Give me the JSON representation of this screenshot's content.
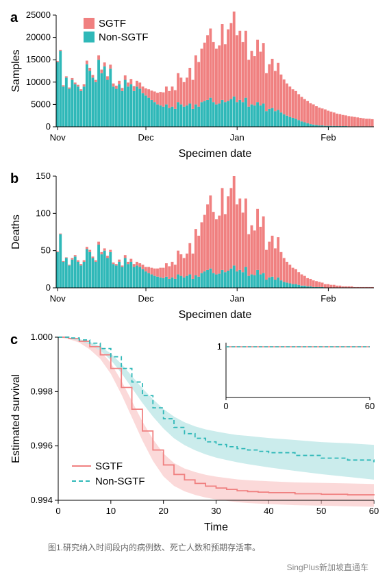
{
  "colors": {
    "sgtf": "#f08080",
    "nonsgtf": "#2fb8b8",
    "sgtf_fill_light": "#f8c0c0",
    "nonsgtf_fill_light": "#a8e0e0",
    "axis": "#000000",
    "grid": "#e6e6e6",
    "bg": "#ffffff"
  },
  "typography": {
    "axis_label_fontsize": 16,
    "tick_fontsize": 13,
    "legend_fontsize": 15,
    "panel_label_fontsize": 20,
    "caption_fontsize": 12
  },
  "panel_a": {
    "label": "a",
    "type": "stacked_bar",
    "x_axis": {
      "label": "Specimen date",
      "ticks": [
        "Nov",
        "Dec",
        "Jan",
        "Feb"
      ]
    },
    "y_axis": {
      "label": "Samples",
      "min": 0,
      "max": 25000,
      "tick_step": 5000,
      "ticks": [
        0,
        5000,
        10000,
        15000,
        20000,
        25000
      ]
    },
    "legend": {
      "items": [
        {
          "label": "SGTF",
          "color": "#f08080"
        },
        {
          "label": "Non-SGTF",
          "color": "#2fb8b8"
        }
      ],
      "position": "top-inside-left"
    },
    "n_bars": 108,
    "series_nonsgtf": [
      14500,
      17000,
      9000,
      11000,
      8500,
      10500,
      9500,
      9000,
      8000,
      9000,
      14000,
      12500,
      11000,
      10000,
      15000,
      12000,
      13500,
      10500,
      13000,
      9000,
      8500,
      9500,
      8000,
      10500,
      9000,
      9500,
      8000,
      9000,
      8500,
      7500,
      7000,
      6500,
      6000,
      5500,
      5000,
      4800,
      4500,
      5000,
      4200,
      4500,
      4000,
      5500,
      5000,
      4500,
      4800,
      5200,
      4000,
      5000,
      4500,
      5500,
      5800,
      6000,
      6500,
      5500,
      5000,
      5200,
      6000,
      5500,
      5800,
      6200,
      6800,
      5500,
      6000,
      5500,
      6500,
      4500,
      5000,
      4800,
      5500,
      4800,
      5200,
      3500,
      4000,
      4200,
      3500,
      3800,
      3200,
      2800,
      2500,
      2200,
      2000,
      1800,
      1500,
      1200,
      1000,
      800,
      600,
      500,
      400,
      300,
      300,
      200,
      200,
      200,
      200,
      150,
      150,
      150,
      150,
      100,
      100,
      100,
      100,
      100,
      100,
      100,
      100,
      100
    ],
    "series_sgtf": [
      200,
      200,
      300,
      300,
      300,
      400,
      400,
      400,
      400,
      500,
      800,
      700,
      600,
      500,
      1000,
      800,
      900,
      800,
      900,
      700,
      700,
      800,
      700,
      1000,
      900,
      1200,
      1100,
      1300,
      1400,
      1500,
      1600,
      1900,
      2100,
      2400,
      2600,
      3000,
      3200,
      4000,
      3800,
      4500,
      4200,
      6500,
      6000,
      5500,
      6200,
      8000,
      6500,
      11000,
      10000,
      12000,
      13000,
      14500,
      15500,
      13500,
      12500,
      13000,
      17000,
      13000,
      16000,
      17000,
      19000,
      15000,
      15500,
      13500,
      15000,
      10500,
      12000,
      11000,
      14000,
      12000,
      13500,
      8500,
      10000,
      11000,
      9000,
      10500,
      8500,
      7800,
      7200,
      6800,
      6400,
      6200,
      5800,
      5500,
      5200,
      5000,
      4700,
      4500,
      4200,
      4000,
      3800,
      3700,
      3400,
      3200,
      3000,
      2800,
      2700,
      2500,
      2400,
      2300,
      2200,
      2100,
      2000,
      1900,
      1800,
      1700,
      1700,
      1600
    ]
  },
  "panel_b": {
    "label": "b",
    "type": "stacked_bar",
    "x_axis": {
      "label": "Specimen date",
      "ticks": [
        "Nov",
        "Dec",
        "Jan",
        "Feb"
      ]
    },
    "y_axis": {
      "label": "Deaths",
      "min": 0,
      "max": 150,
      "tick_step": 50,
      "ticks": [
        0,
        50,
        100,
        150
      ]
    },
    "n_bars": 108,
    "series_nonsgtf": [
      48,
      72,
      35,
      40,
      30,
      38,
      42,
      35,
      30,
      35,
      52,
      48,
      40,
      35,
      58,
      45,
      50,
      40,
      48,
      32,
      30,
      35,
      28,
      40,
      32,
      35,
      28,
      30,
      28,
      25,
      22,
      20,
      18,
      16,
      15,
      14,
      13,
      15,
      12,
      14,
      12,
      18,
      16,
      14,
      16,
      18,
      12,
      17,
      15,
      20,
      22,
      24,
      26,
      20,
      18,
      19,
      24,
      21,
      23,
      26,
      30,
      22,
      24,
      21,
      28,
      16,
      18,
      17,
      24,
      18,
      20,
      11,
      14,
      15,
      11,
      14,
      10,
      8,
      7,
      6,
      5,
      5,
      4,
      3,
      3,
      2,
      2,
      1,
      1,
      1,
      1,
      0,
      0,
      0,
      0,
      0,
      0,
      0,
      0,
      0,
      0,
      0,
      0,
      0,
      0,
      0,
      0,
      0
    ],
    "series_sgtf": [
      1,
      1,
      1,
      1,
      1,
      2,
      2,
      2,
      2,
      2,
      3,
      3,
      2,
      2,
      4,
      3,
      3,
      3,
      3,
      2,
      2,
      3,
      2,
      4,
      3,
      4,
      4,
      5,
      5,
      6,
      6,
      8,
      9,
      10,
      11,
      13,
      14,
      18,
      17,
      21,
      19,
      32,
      29,
      26,
      30,
      42,
      34,
      62,
      55,
      68,
      76,
      88,
      98,
      82,
      74,
      78,
      110,
      78,
      100,
      108,
      120,
      90,
      96,
      80,
      92,
      56,
      66,
      60,
      82,
      64,
      76,
      40,
      48,
      55,
      42,
      54,
      38,
      32,
      28,
      25,
      22,
      20,
      17,
      15,
      13,
      11,
      10,
      9,
      8,
      7,
      6,
      5,
      5,
      4,
      4,
      3,
      3,
      2,
      2,
      2,
      2,
      1,
      1,
      1,
      1,
      1,
      1,
      1
    ]
  },
  "panel_c": {
    "label": "c",
    "type": "survival_curve",
    "x_axis": {
      "label": "Time",
      "min": 0,
      "max": 60,
      "tick_step": 10,
      "ticks": [
        0,
        10,
        20,
        30,
        40,
        50,
        60
      ]
    },
    "y_axis": {
      "label": "Estimated survival",
      "min": 0.994,
      "max": 1.0,
      "tick_step": 0.002,
      "ticks": [
        0.994,
        0.996,
        0.998,
        1.0
      ]
    },
    "legend": {
      "items": [
        {
          "label": "SGTF",
          "color": "#f08080",
          "dash": "solid"
        },
        {
          "label": "Non-SGTF",
          "color": "#2fb8b8",
          "dash": "dashed"
        }
      ],
      "position": "bottom-inside-left"
    },
    "inset": {
      "x_axis": {
        "min": 0,
        "max": 60,
        "ticks": [
          0,
          60
        ]
      },
      "y_axis": {
        "ticks": [
          1
        ]
      },
      "position": "top-right"
    },
    "curve_sgtf": {
      "x": [
        0,
        2,
        4,
        6,
        8,
        10,
        12,
        14,
        16,
        18,
        20,
        22,
        24,
        26,
        28,
        30,
        32,
        34,
        36,
        38,
        40,
        45,
        50,
        55,
        60
      ],
      "y": [
        1.0,
        0.99995,
        0.99985,
        0.99965,
        0.99935,
        0.99885,
        0.99815,
        0.99735,
        0.99655,
        0.99585,
        0.9953,
        0.99495,
        0.99475,
        0.99462,
        0.99452,
        0.99445,
        0.9944,
        0.99435,
        0.99432,
        0.9943,
        0.99428,
        0.99424,
        0.99422,
        0.9942,
        0.99418
      ],
      "ci_lo": [
        1.0,
        0.99993,
        0.9998,
        0.99955,
        0.9992,
        0.99865,
        0.9979,
        0.99705,
        0.9962,
        0.99545,
        0.99488,
        0.99453,
        0.99433,
        0.9942,
        0.9941,
        0.99403,
        0.99398,
        0.99393,
        0.9939,
        0.99388,
        0.99386,
        0.99382,
        0.9938,
        0.99378,
        0.99376
      ],
      "ci_hi": [
        1.0,
        0.99997,
        0.9999,
        0.99975,
        0.9995,
        0.99905,
        0.9984,
        0.99765,
        0.9969,
        0.99625,
        0.99572,
        0.99537,
        0.99517,
        0.99504,
        0.99494,
        0.99487,
        0.99482,
        0.99477,
        0.99474,
        0.99472,
        0.9947,
        0.99466,
        0.99464,
        0.99462,
        0.9946
      ]
    },
    "curve_nonsgtf": {
      "x": [
        0,
        2,
        4,
        6,
        8,
        10,
        12,
        14,
        16,
        18,
        20,
        22,
        24,
        26,
        28,
        30,
        32,
        34,
        36,
        38,
        40,
        45,
        50,
        55,
        60
      ],
      "y": [
        1.0,
        0.99997,
        0.9999,
        0.99978,
        0.99958,
        0.99928,
        0.99885,
        0.99835,
        0.99785,
        0.9974,
        0.997,
        0.99668,
        0.99645,
        0.99628,
        0.99615,
        0.99605,
        0.99597,
        0.9959,
        0.99585,
        0.9958,
        0.99575,
        0.99565,
        0.99555,
        0.99548,
        0.9954
      ],
      "ci_lo": [
        1.0,
        0.99996,
        0.99987,
        0.99973,
        0.9995,
        0.99916,
        0.99868,
        0.99813,
        0.99758,
        0.99708,
        0.99664,
        0.99628,
        0.99603,
        0.99584,
        0.99569,
        0.99557,
        0.99548,
        0.9954,
        0.99533,
        0.99527,
        0.99521,
        0.99508,
        0.99496,
        0.99486,
        0.99476
      ],
      "ci_hi": [
        1.0,
        0.99998,
        0.99993,
        0.99983,
        0.99966,
        0.9994,
        0.99902,
        0.99857,
        0.99812,
        0.99772,
        0.99736,
        0.99708,
        0.99687,
        0.99672,
        0.99661,
        0.99653,
        0.99646,
        0.9964,
        0.99637,
        0.99633,
        0.99629,
        0.99622,
        0.99614,
        0.9961,
        0.99604
      ]
    }
  },
  "caption": "图1.研究纳入时间段内的病例数、死亡人数和预期存活率。",
  "watermark": "SingPlus新加坡直通车"
}
